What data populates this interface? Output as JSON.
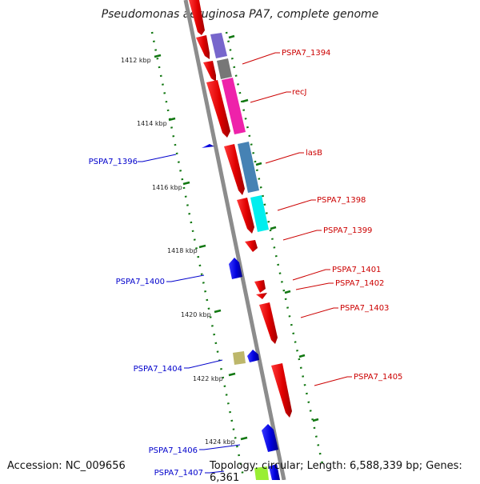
{
  "title": "Pseudomonas aeruginosa PA7, complete genome",
  "footer": {
    "accession": "Accession: NC_009656",
    "summary": "Topology: circular; Length: 6,588,339 bp; Genes: 6,361"
  },
  "ruler_labels": [
    "1412 kbp",
    "1414 kbp",
    "1416 kbp",
    "1418 kbp",
    "1420 kbp",
    "1422 kbp",
    "1424 kbp"
  ],
  "colors": {
    "forward_gene": "#ee0000",
    "reverse_gene": "#0000dd",
    "forward_label": "#cc0000",
    "reverse_label": "#0000cc",
    "backbone": "#8c8c8c",
    "tick": "#117711"
  },
  "gene_labels": [
    {
      "text": "PSPA7_1394",
      "strand": "forward"
    },
    {
      "text": "recJ",
      "strand": "forward"
    },
    {
      "text": "lasB",
      "strand": "forward"
    },
    {
      "text": "PSPA7_1396",
      "strand": "reverse"
    },
    {
      "text": "PSPA7_1398",
      "strand": "forward"
    },
    {
      "text": "PSPA7_1399",
      "strand": "forward"
    },
    {
      "text": "PSPA7_1400",
      "strand": "reverse"
    },
    {
      "text": "PSPA7_1401",
      "strand": "forward"
    },
    {
      "text": "PSPA7_1402",
      "strand": "forward"
    },
    {
      "text": "PSPA7_1403",
      "strand": "forward"
    },
    {
      "text": "PSPA7_1404",
      "strand": "reverse"
    },
    {
      "text": "PSPA7_1405",
      "strand": "forward"
    },
    {
      "text": "PSPA7_1406",
      "strand": "reverse"
    },
    {
      "text": "PSPA7_1407",
      "strand": "reverse"
    }
  ]
}
